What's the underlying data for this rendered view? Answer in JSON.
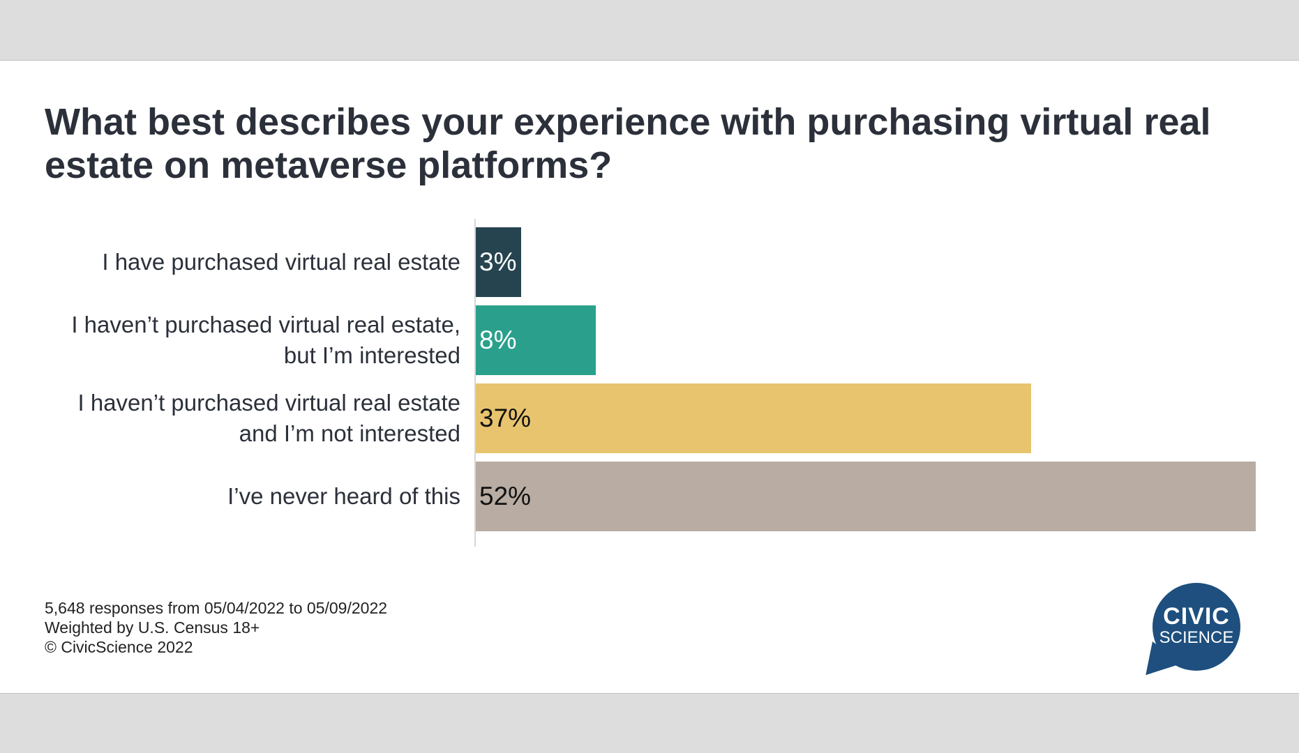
{
  "title": "What best describes your experience with purchasing virtual real estate on metaverse platforms?",
  "chart_data": {
    "type": "bar",
    "orientation": "horizontal",
    "title": "What best describes your experience with purchasing virtual real estate on metaverse platforms?",
    "xlabel": "",
    "ylabel": "",
    "xlim": [
      0,
      52
    ],
    "grid": false,
    "categories": [
      "I have purchased virtual real estate",
      "I haven’t purchased virtual real estate,\nbut I’m interested",
      "I haven’t purchased virtual real estate\nand I’m not interested",
      "I’ve never heard of this"
    ],
    "values": [
      3,
      8,
      37,
      52
    ],
    "value_labels": [
      "3%",
      "8%",
      "37%",
      "52%"
    ],
    "colors": [
      "#26444f",
      "#2aa08c",
      "#e8c46e",
      "#b8aca3"
    ],
    "label_colors": [
      "#ffffff",
      "#ffffff",
      "#111111",
      "#111111"
    ]
  },
  "footnote": {
    "line1": "5,648 responses from 05/04/2022 to 05/09/2022",
    "line2": "Weighted by U.S. Census 18+",
    "line3": "© CivicScience 2022"
  },
  "logo": {
    "line1": "CIVIC",
    "line2": "SCIENCE",
    "color": "#1e4f7e"
  }
}
